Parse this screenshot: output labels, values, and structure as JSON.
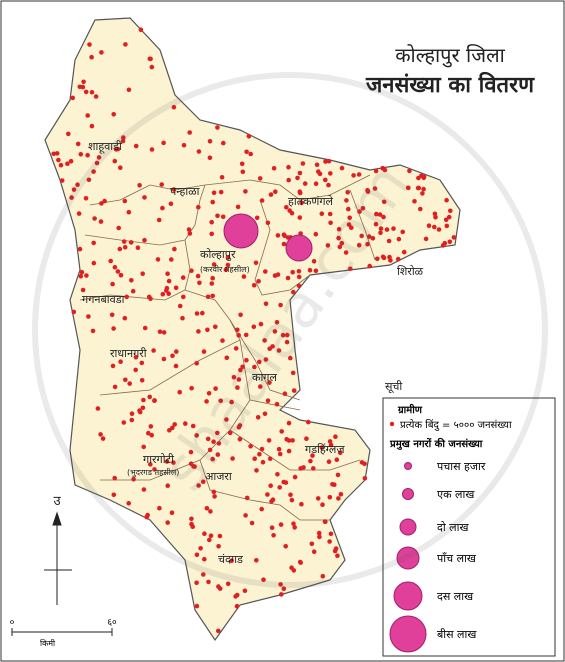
{
  "title": {
    "district": "कोल्हापुर जिला",
    "subtitle": "जनसंख्या का वितरण"
  },
  "talukas": [
    {
      "name": "शाहूवाडी"
    },
    {
      "name": "पन्हाळा"
    },
    {
      "name": "हातकणंगले"
    },
    {
      "name": "कोल्हापुर",
      "note": "(करवीर तहसील)"
    },
    {
      "name": "शिरोळ"
    },
    {
      "name": "गगनबावडा"
    },
    {
      "name": "राधानगरी"
    },
    {
      "name": "कागल"
    },
    {
      "name": "गडहिंग्लज"
    },
    {
      "name": "गारगोटी",
      "note": "(भुदरगड तहसील)"
    },
    {
      "name": "आजरा"
    },
    {
      "name": "चंदगड"
    }
  ],
  "legend": {
    "heading": "सूची",
    "rural": "ग्रामीण",
    "dot_rule": "प्रत्येक बिंदु = ५००० जनसंख्या",
    "urban_heading": "प्रमुख नगरों की जनसंख्या",
    "sizes": [
      "पचास हजार",
      "एक लाख",
      "दो लाख",
      "पाँच लाख",
      "दस लाख",
      "बीस लाख"
    ]
  },
  "north": "उ",
  "scale": {
    "start": "०",
    "end": "६०",
    "unit": "किमी"
  },
  "watermark": "shaalaa.com"
}
